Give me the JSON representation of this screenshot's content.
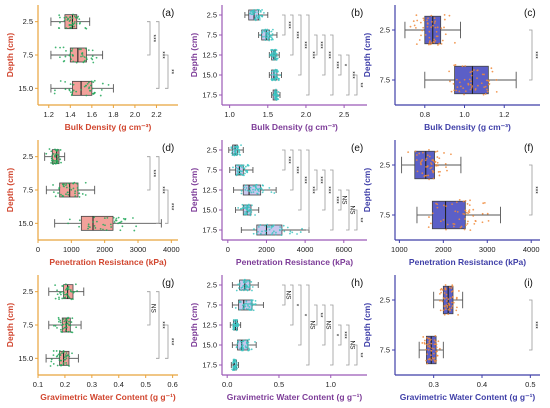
{
  "figure": {
    "panel_labels": [
      "(a)",
      "(b)",
      "(c)",
      "(d)",
      "(e)",
      "(f)",
      "(g)",
      "(h)",
      "(i)"
    ]
  },
  "colors": {
    "orange_axis": "#e8a33c",
    "orange_label": "#d1462f",
    "orange_box": "#f2a19a",
    "purple_axis": "#9b59b6",
    "purple_label": "#7d3c98",
    "purple_box": "#c9c7ee",
    "blue_axis": "#3f3fa8",
    "blue_box": "#5b5fc7",
    "green_points": "#22a85a",
    "cyan_points": "#3cc6c2",
    "orange_points": "#f08a3a",
    "bracket": "#9a9a9a"
  },
  "chart_data": [
    {
      "id": "a",
      "type": "box",
      "panel_label": "(a)",
      "xlabel": "Bulk Density (g cm⁻³)",
      "ylabel": "Depth (cm)",
      "categories": [
        "2.5",
        "7.5",
        "15.0"
      ],
      "xlim": [
        1.1,
        2.4
      ],
      "xticks": [
        1.2,
        1.4,
        1.6,
        1.8,
        2.0,
        2.2
      ],
      "xtick_labels": [
        "1.2",
        "1.4",
        "1.6",
        "1.8",
        "2.0",
        "2.2"
      ],
      "boxes": [
        {
          "category": "2.5",
          "min": 1.22,
          "q1": 1.35,
          "median": 1.42,
          "q3": 1.46,
          "max": 1.58
        },
        {
          "category": "7.5",
          "min": 1.22,
          "q1": 1.4,
          "median": 1.47,
          "q3": 1.55,
          "max": 1.7
        },
        {
          "category": "15.0",
          "min": 1.22,
          "q1": 1.42,
          "median": 1.5,
          "q3": 1.6,
          "max": 1.8
        }
      ],
      "significance": [
        {
          "label": "***",
          "pair": [
            "2.5",
            "7.5"
          ]
        },
        {
          "label": "***",
          "pair": [
            "2.5",
            "15.0"
          ]
        },
        {
          "label": "**",
          "pair": [
            "7.5",
            "15.0"
          ]
        }
      ],
      "style": "a"
    },
    {
      "id": "b",
      "type": "box",
      "panel_label": "(b)",
      "xlabel": "Bulk Density (g cm⁻³)",
      "ylabel": "Depth (cm)",
      "categories": [
        "2.5",
        "7.5",
        "12.5",
        "15.0",
        "17.5"
      ],
      "xlim": [
        0.9,
        2.8
      ],
      "xticks": [
        1.0,
        1.5,
        2.0,
        2.5
      ],
      "xtick_labels": [
        "1.0",
        "1.5",
        "2.0",
        "2.5"
      ],
      "boxes": [
        {
          "category": "2.5",
          "min": 1.2,
          "q1": 1.25,
          "median": 1.32,
          "q3": 1.38,
          "max": 1.5
        },
        {
          "category": "7.5",
          "min": 1.38,
          "q1": 1.42,
          "median": 1.48,
          "q3": 1.52,
          "max": 1.62
        },
        {
          "category": "12.5",
          "min": 1.52,
          "q1": 1.55,
          "median": 1.58,
          "q3": 1.6,
          "max": 1.65
        },
        {
          "category": "15.0",
          "min": 1.52,
          "q1": 1.55,
          "median": 1.58,
          "q3": 1.62,
          "max": 1.68
        },
        {
          "category": "17.5",
          "min": 1.55,
          "q1": 1.57,
          "median": 1.6,
          "q3": 1.62,
          "max": 1.66
        }
      ],
      "significance": [
        {
          "label": "***",
          "pair": [
            "2.5",
            "7.5"
          ]
        },
        {
          "label": "***",
          "pair": [
            "2.5",
            "12.5"
          ]
        },
        {
          "label": "***",
          "pair": [
            "2.5",
            "15.0"
          ]
        },
        {
          "label": "***",
          "pair": [
            "2.5",
            "17.5"
          ]
        },
        {
          "label": "***",
          "pair": [
            "7.5",
            "12.5"
          ]
        },
        {
          "label": "***",
          "pair": [
            "7.5",
            "15.0"
          ]
        },
        {
          "label": "***",
          "pair": [
            "7.5",
            "17.5"
          ]
        },
        {
          "label": "*",
          "pair": [
            "12.5",
            "15.0"
          ]
        },
        {
          "label": "***",
          "pair": [
            "12.5",
            "17.5"
          ]
        },
        {
          "label": "**",
          "pair": [
            "15.0",
            "17.5"
          ]
        }
      ],
      "style": "b"
    },
    {
      "id": "c",
      "type": "box",
      "panel_label": "(c)",
      "xlabel": "Bulk Density (g cm⁻³)",
      "ylabel": "Depth (cm)",
      "categories": [
        "2.5",
        "7.5"
      ],
      "xlim": [
        0.65,
        1.38
      ],
      "xticks": [
        0.8,
        1.0,
        1.2
      ],
      "xtick_labels": [
        "0.8",
        "1.0",
        "1.2"
      ],
      "boxes": [
        {
          "category": "2.5",
          "min": 0.7,
          "q1": 0.8,
          "median": 0.84,
          "q3": 0.88,
          "max": 0.98
        },
        {
          "category": "7.5",
          "min": 0.8,
          "q1": 0.95,
          "median": 1.04,
          "q3": 1.12,
          "max": 1.26
        }
      ],
      "significance": [
        {
          "label": "***",
          "pair": [
            "2.5",
            "7.5"
          ]
        }
      ],
      "style": "c"
    },
    {
      "id": "d",
      "type": "box",
      "panel_label": "(d)",
      "xlabel": "Penetration Resistance (kPa)",
      "ylabel": "Depth (cm)",
      "categories": [
        "2.5",
        "7.5",
        "15.0"
      ],
      "xlim": [
        0,
        4200
      ],
      "xticks": [
        0,
        1000,
        2000,
        3000,
        4000
      ],
      "xtick_labels": [
        "0",
        "1000",
        "2000",
        "3000",
        "4000"
      ],
      "boxes": [
        {
          "category": "2.5",
          "min": 200,
          "q1": 430,
          "median": 560,
          "q3": 630,
          "max": 800
        },
        {
          "category": "7.5",
          "min": 250,
          "q1": 650,
          "median": 950,
          "q3": 1200,
          "max": 1700
        },
        {
          "category": "15.0",
          "min": 500,
          "q1": 1300,
          "median": 1650,
          "q3": 2250,
          "max": 3700
        }
      ],
      "significance": [
        {
          "label": "***",
          "pair": [
            "2.5",
            "7.5"
          ]
        },
        {
          "label": "***",
          "pair": [
            "2.5",
            "15.0"
          ]
        },
        {
          "label": "***",
          "pair": [
            "7.5",
            "15.0"
          ]
        }
      ],
      "style": "a"
    },
    {
      "id": "e",
      "type": "box",
      "panel_label": "(e)",
      "xlabel": "Penetration Resistance (kPa)",
      "ylabel": "Depth (cm)",
      "categories": [
        "2.5",
        "7.5",
        "12.5",
        "15.0",
        "17.5"
      ],
      "xlim": [
        -300,
        7200
      ],
      "xticks": [
        0,
        2000,
        4000,
        6000
      ],
      "xtick_labels": [
        "0",
        "2000",
        "4000",
        "6000"
      ],
      "boxes": [
        {
          "category": "2.5",
          "min": 50,
          "q1": 250,
          "median": 380,
          "q3": 500,
          "max": 800
        },
        {
          "category": "7.5",
          "min": 100,
          "q1": 400,
          "median": 600,
          "q3": 800,
          "max": 1300
        },
        {
          "category": "12.5",
          "min": 300,
          "q1": 800,
          "median": 1100,
          "q3": 1700,
          "max": 2500
        },
        {
          "category": "15.0",
          "min": 400,
          "q1": 800,
          "median": 1000,
          "q3": 1200,
          "max": 1600
        },
        {
          "category": "17.5",
          "min": 700,
          "q1": 1500,
          "median": 2000,
          "q3": 2800,
          "max": 4200
        }
      ],
      "significance": [
        {
          "label": "***",
          "pair": [
            "2.5",
            "7.5"
          ]
        },
        {
          "label": "***",
          "pair": [
            "2.5",
            "12.5"
          ]
        },
        {
          "label": "***",
          "pair": [
            "2.5",
            "15.0"
          ]
        },
        {
          "label": "***",
          "pair": [
            "2.5",
            "17.5"
          ]
        },
        {
          "label": "***",
          "pair": [
            "7.5",
            "12.5"
          ]
        },
        {
          "label": "***",
          "pair": [
            "7.5",
            "15.0"
          ]
        },
        {
          "label": "***",
          "pair": [
            "7.5",
            "17.5"
          ]
        },
        {
          "label": "NS",
          "pair": [
            "12.5",
            "15.0"
          ]
        },
        {
          "label": "NS",
          "pair": [
            "12.5",
            "17.5"
          ]
        },
        {
          "label": "**",
          "pair": [
            "15.0",
            "17.5"
          ]
        }
      ],
      "style": "b"
    },
    {
      "id": "f",
      "type": "box",
      "panel_label": "(f)",
      "xlabel": "Penetration Resistance (kPa)",
      "ylabel": "Depth (cm)",
      "categories": [
        "2.5",
        "7.5"
      ],
      "xlim": [
        900,
        4200
      ],
      "xticks": [
        1000,
        2000,
        3000,
        4000
      ],
      "xtick_labels": [
        "1000",
        "2000",
        "3000",
        "4000"
      ],
      "boxes": [
        {
          "category": "2.5",
          "min": 1050,
          "q1": 1350,
          "median": 1600,
          "q3": 1800,
          "max": 2400
        },
        {
          "category": "7.5",
          "min": 1400,
          "q1": 1750,
          "median": 2050,
          "q3": 2500,
          "max": 3300
        }
      ],
      "significance": [
        {
          "label": "***",
          "pair": [
            "2.5",
            "7.5"
          ]
        }
      ],
      "style": "c"
    },
    {
      "id": "g",
      "type": "box",
      "panel_label": "(g)",
      "xlabel": "Gravimetric Water Content (g g⁻¹)",
      "ylabel": "Depth (cm)",
      "categories": [
        "2.5",
        "7.5",
        "15.0"
      ],
      "xlim": [
        0.1,
        0.62
      ],
      "xticks": [
        0.1,
        0.2,
        0.3,
        0.4,
        0.5,
        0.6
      ],
      "xtick_labels": [
        "0.1",
        "0.2",
        "0.3",
        "0.4",
        "0.5",
        "0.6"
      ],
      "boxes": [
        {
          "category": "2.5",
          "min": 0.14,
          "q1": 0.195,
          "median": 0.21,
          "q3": 0.23,
          "max": 0.27
        },
        {
          "category": "7.5",
          "min": 0.14,
          "q1": 0.19,
          "median": 0.205,
          "q3": 0.22,
          "max": 0.26
        },
        {
          "category": "15.0",
          "min": 0.13,
          "q1": 0.18,
          "median": 0.195,
          "q3": 0.215,
          "max": 0.25
        }
      ],
      "significance": [
        {
          "label": "NS",
          "pair": [
            "2.5",
            "7.5"
          ]
        },
        {
          "label": "***",
          "pair": [
            "2.5",
            "15.0"
          ]
        },
        {
          "label": "***",
          "pair": [
            "7.5",
            "15.0"
          ]
        }
      ],
      "style": "a"
    },
    {
      "id": "h",
      "type": "box",
      "panel_label": "(h)",
      "xlabel": "Gravimetric Water Content (g g⁻¹)",
      "ylabel": "Depth (cm)",
      "categories": [
        "2.5",
        "7.5",
        "12.5",
        "15.0",
        "17.5"
      ],
      "xlim": [
        -0.05,
        1.35
      ],
      "xticks": [
        0.0,
        0.5,
        1.0
      ],
      "xtick_labels": [
        "0.0",
        "0.5",
        "1.0"
      ],
      "boxes": [
        {
          "category": "2.5",
          "min": 0.05,
          "q1": 0.12,
          "median": 0.17,
          "q3": 0.22,
          "max": 0.3
        },
        {
          "category": "7.5",
          "min": 0.05,
          "q1": 0.11,
          "median": 0.16,
          "q3": 0.24,
          "max": 0.35
        },
        {
          "category": "12.5",
          "min": 0.03,
          "q1": 0.06,
          "median": 0.08,
          "q3": 0.1,
          "max": 0.13
        },
        {
          "category": "15.0",
          "min": 0.05,
          "q1": 0.1,
          "median": 0.14,
          "q3": 0.2,
          "max": 0.28
        },
        {
          "category": "17.5",
          "min": 0.04,
          "q1": 0.06,
          "median": 0.07,
          "q3": 0.09,
          "max": 0.11
        }
      ],
      "significance": [
        {
          "label": "NS",
          "pair": [
            "2.5",
            "7.5"
          ]
        },
        {
          "label": "*",
          "pair": [
            "2.5",
            "12.5"
          ]
        },
        {
          "label": "*",
          "pair": [
            "2.5",
            "15.0"
          ]
        },
        {
          "label": "NS",
          "pair": [
            "2.5",
            "17.5"
          ]
        },
        {
          "label": "**",
          "pair": [
            "7.5",
            "12.5"
          ]
        },
        {
          "label": "NS",
          "pair": [
            "7.5",
            "15.0"
          ]
        },
        {
          "label": "*",
          "pair": [
            "7.5",
            "17.5"
          ]
        },
        {
          "label": "***",
          "pair": [
            "12.5",
            "15.0"
          ]
        },
        {
          "label": "NS",
          "pair": [
            "12.5",
            "17.5"
          ]
        },
        {
          "label": "**",
          "pair": [
            "15.0",
            "17.5"
          ]
        }
      ],
      "style": "b"
    },
    {
      "id": "i",
      "type": "box",
      "panel_label": "(i)",
      "xlabel": "Gravimetric Water Content (g g⁻¹)",
      "ylabel": "Depth (cm)",
      "categories": [
        "2.5",
        "7.5"
      ],
      "xlim": [
        0.22,
        0.52
      ],
      "xticks": [
        0.3,
        0.4,
        0.5
      ],
      "xtick_labels": [
        "0.3",
        "0.4",
        "0.5"
      ],
      "boxes": [
        {
          "category": "2.5",
          "min": 0.3,
          "q1": 0.32,
          "median": 0.33,
          "q3": 0.34,
          "max": 0.36
        },
        {
          "category": "7.5",
          "min": 0.27,
          "q1": 0.285,
          "median": 0.295,
          "q3": 0.305,
          "max": 0.32
        }
      ],
      "significance": [
        {
          "label": "***",
          "pair": [
            "2.5",
            "7.5"
          ]
        }
      ],
      "style": "c"
    }
  ]
}
